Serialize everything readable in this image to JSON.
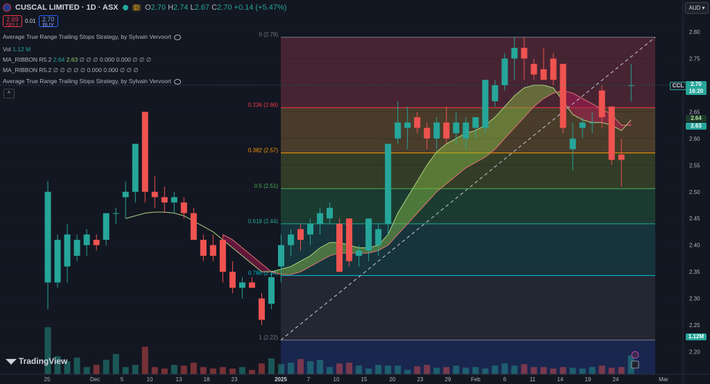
{
  "header": {
    "title": "CUSCAL LIMITED · 1D · ASX",
    "badge": "D",
    "o_label": "O",
    "o": "2.70",
    "h_label": "H",
    "h": "2.74",
    "l_label": "L",
    "l": "2.67",
    "c_label": "C",
    "c": "2.70",
    "change": "+0.14 (+5.47%)"
  },
  "trade": {
    "sell_price": "2.69",
    "sell_label": "SELL",
    "spread": "0.01",
    "buy_price": "2.70",
    "buy_label": "BUY"
  },
  "indicators": {
    "atr1": "Average True Range Trailing Stops Strategy, by Sylvain Vervoort",
    "vol_label": "Vol",
    "vol_value": "1.12 M",
    "ribbon1_label": "MA_RIBBON R5.2",
    "ribbon1_v1": "2.64",
    "ribbon1_v2": "2.63",
    "ribbon1_rest": "∅ ∅ ∅ 0.000 0.000 ∅ ∅ ∅",
    "ribbon2_label": "MA_RIBBON R5.2",
    "ribbon2_rest": "∅ ∅ ∅ ∅ ∅ 0.000 0.000 ∅ ∅ ∅",
    "atr2": "Average True Range Trailing Stops Strategy, by Sylvain Vervoort"
  },
  "currency_button": "AUD",
  "logo_text": "TradingView",
  "price_labels": {
    "ccl": "CCL",
    "last": "2.70",
    "countdown": "16:20",
    "ma1": "2.64",
    "ma2": "2.63",
    "volume": "1.12M"
  },
  "colors": {
    "up": "#26a69a",
    "down": "#ef5350",
    "background": "#131722"
  },
  "chart_data": {
    "type": "candlestick",
    "y_axis": {
      "range": [
        2.16,
        2.83
      ],
      "ticks": [
        "2.80",
        "2.75",
        "2.70",
        "2.65",
        "2.60",
        "2.55",
        "2.50",
        "2.45",
        "2.40",
        "2.35",
        "2.30",
        "2.25",
        "2.20"
      ]
    },
    "x_axis": {
      "ticks": [
        "25",
        "Dec",
        "5",
        "10",
        "13",
        "18",
        "23",
        "2025",
        "7",
        "10",
        "15",
        "20",
        "23",
        "29",
        "Feb",
        "6",
        "11",
        "14",
        "19",
        "24",
        "Mar"
      ]
    },
    "fib_levels": [
      {
        "label": "0 (2.79)",
        "value": 2.79
      },
      {
        "label": "0.236 (2.66)",
        "value": 2.658
      },
      {
        "label": "0.382 (2.57)",
        "value": 2.573
      },
      {
        "label": "0.5 (2.51)",
        "value": 2.506
      },
      {
        "label": "0.618 (2.44)",
        "value": 2.44
      },
      {
        "label": "0.786 (2.34)",
        "value": 2.343
      },
      {
        "label": "1 (2.22)",
        "value": 2.222
      }
    ],
    "candles": [
      {
        "o": 2.33,
        "h": 2.52,
        "l": 2.28,
        "c": 2.5
      },
      {
        "o": 2.33,
        "h": 2.42,
        "l": 2.32,
        "c": 2.41
      },
      {
        "o": 2.36,
        "h": 2.44,
        "l": 2.33,
        "c": 2.42
      },
      {
        "o": 2.38,
        "h": 2.42,
        "l": 2.37,
        "c": 2.41
      },
      {
        "o": 2.4,
        "h": 2.43,
        "l": 2.38,
        "c": 2.42
      },
      {
        "o": 2.41,
        "h": 2.42,
        "l": 2.39,
        "c": 2.4
      },
      {
        "o": 2.41,
        "h": 2.46,
        "l": 2.4,
        "c": 2.46
      },
      {
        "o": 2.46,
        "h": 2.47,
        "l": 2.44,
        "c": 2.46
      },
      {
        "o": 2.49,
        "h": 2.52,
        "l": 2.45,
        "c": 2.5
      },
      {
        "o": 2.5,
        "h": 2.59,
        "l": 2.48,
        "c": 2.59
      },
      {
        "o": 2.65,
        "h": 2.65,
        "l": 2.48,
        "c": 2.5
      },
      {
        "o": 2.5,
        "h": 2.53,
        "l": 2.47,
        "c": 2.49
      },
      {
        "o": 2.49,
        "h": 2.51,
        "l": 2.46,
        "c": 2.48
      },
      {
        "o": 2.48,
        "h": 2.5,
        "l": 2.46,
        "c": 2.49
      },
      {
        "o": 2.48,
        "h": 2.49,
        "l": 2.45,
        "c": 2.46
      },
      {
        "o": 2.46,
        "h": 2.47,
        "l": 2.41,
        "c": 2.41
      },
      {
        "o": 2.41,
        "h": 2.42,
        "l": 2.37,
        "c": 2.38
      },
      {
        "o": 2.4,
        "h": 2.42,
        "l": 2.37,
        "c": 2.38
      },
      {
        "o": 2.41,
        "h": 2.42,
        "l": 2.33,
        "c": 2.35
      },
      {
        "o": 2.35,
        "h": 2.37,
        "l": 2.31,
        "c": 2.32
      },
      {
        "o": 2.32,
        "h": 2.34,
        "l": 2.3,
        "c": 2.33
      },
      {
        "o": 2.33,
        "h": 2.34,
        "l": 2.32,
        "c": 2.32
      },
      {
        "o": 2.3,
        "h": 2.31,
        "l": 2.25,
        "c": 2.26
      },
      {
        "o": 2.29,
        "h": 2.35,
        "l": 2.28,
        "c": 2.34
      },
      {
        "o": 2.36,
        "h": 2.42,
        "l": 2.33,
        "c": 2.4
      },
      {
        "o": 2.4,
        "h": 2.43,
        "l": 2.38,
        "c": 2.42
      },
      {
        "o": 2.43,
        "h": 2.44,
        "l": 2.39,
        "c": 2.41
      },
      {
        "o": 2.42,
        "h": 2.45,
        "l": 2.4,
        "c": 2.44
      },
      {
        "o": 2.44,
        "h": 2.47,
        "l": 2.42,
        "c": 2.46
      },
      {
        "o": 2.45,
        "h": 2.48,
        "l": 2.44,
        "c": 2.47
      },
      {
        "o": 2.44,
        "h": 2.45,
        "l": 2.35,
        "c": 2.35
      },
      {
        "o": 2.45,
        "h": 2.45,
        "l": 2.36,
        "c": 2.37
      },
      {
        "o": 2.38,
        "h": 2.4,
        "l": 2.36,
        "c": 2.39
      },
      {
        "o": 2.39,
        "h": 2.45,
        "l": 2.37,
        "c": 2.45
      },
      {
        "o": 2.4,
        "h": 2.44,
        "l": 2.38,
        "c": 2.43
      },
      {
        "o": 2.44,
        "h": 2.59,
        "l": 2.42,
        "c": 2.59
      },
      {
        "o": 2.6,
        "h": 2.67,
        "l": 2.59,
        "c": 2.63
      },
      {
        "o": 2.62,
        "h": 2.66,
        "l": 2.58,
        "c": 2.63
      },
      {
        "o": 2.64,
        "h": 2.65,
        "l": 2.61,
        "c": 2.62
      },
      {
        "o": 2.62,
        "h": 2.63,
        "l": 2.58,
        "c": 2.6
      },
      {
        "o": 2.6,
        "h": 2.64,
        "l": 2.58,
        "c": 2.63
      },
      {
        "o": 2.63,
        "h": 2.66,
        "l": 2.59,
        "c": 2.6
      },
      {
        "o": 2.61,
        "h": 2.65,
        "l": 2.59,
        "c": 2.63
      },
      {
        "o": 2.6,
        "h": 2.64,
        "l": 2.58,
        "c": 2.63
      },
      {
        "o": 2.62,
        "h": 2.64,
        "l": 2.6,
        "c": 2.64
      },
      {
        "o": 2.62,
        "h": 2.71,
        "l": 2.61,
        "c": 2.71
      },
      {
        "o": 2.67,
        "h": 2.71,
        "l": 2.66,
        "c": 2.7
      },
      {
        "o": 2.7,
        "h": 2.76,
        "l": 2.69,
        "c": 2.75
      },
      {
        "o": 2.75,
        "h": 2.79,
        "l": 2.71,
        "c": 2.77
      },
      {
        "o": 2.77,
        "h": 2.79,
        "l": 2.71,
        "c": 2.75
      },
      {
        "o": 2.74,
        "h": 2.75,
        "l": 2.71,
        "c": 2.72
      },
      {
        "o": 2.73,
        "h": 2.77,
        "l": 2.71,
        "c": 2.71
      },
      {
        "o": 2.75,
        "h": 2.76,
        "l": 2.7,
        "c": 2.71
      },
      {
        "o": 2.74,
        "h": 2.74,
        "l": 2.61,
        "c": 2.62
      },
      {
        "o": 2.58,
        "h": 2.63,
        "l": 2.54,
        "c": 2.6
      },
      {
        "o": 2.62,
        "h": 2.64,
        "l": 2.6,
        "c": 2.63
      },
      {
        "o": 2.63,
        "h": 2.65,
        "l": 2.61,
        "c": 2.63
      },
      {
        "o": 2.69,
        "h": 2.7,
        "l": 2.62,
        "c": 2.64
      },
      {
        "o": 2.66,
        "h": 2.66,
        "l": 2.55,
        "c": 2.56
      },
      {
        "o": 2.57,
        "h": 2.6,
        "l": 2.51,
        "c": 2.56
      },
      {
        "o": 2.7,
        "h": 2.74,
        "l": 2.67,
        "c": 2.7
      }
    ],
    "volume_scale": [
      0,
      1.1
    ],
    "volumes": [
      0.65,
      0.25,
      0.18,
      0.23,
      0.1,
      0.13,
      0.2,
      0.28,
      0.1,
      0.13,
      0.38,
      0.1,
      0.08,
      0.13,
      0.12,
      0.16,
      0.1,
      0.08,
      0.1,
      0.08,
      0.1,
      0.06,
      0.15,
      0.22,
      0.14,
      0.16,
      0.21,
      0.18,
      0.2,
      0.1,
      0.15,
      0.16,
      0.12,
      0.08,
      0.13,
      0.12,
      0.12,
      0.06,
      0.11,
      0.13,
      0.09,
      0.1,
      0.12,
      0.09,
      0.1,
      0.08,
      0.12,
      0.15,
      0.12,
      0.14,
      0.1,
      0.1,
      0.08,
      0.1,
      0.09,
      0.08,
      0.1,
      0.12,
      0.09,
      0.1,
      0.26
    ],
    "ma_ribbon_fast": [
      null,
      null,
      null,
      null,
      null,
      null,
      null,
      null,
      2.45,
      2.455,
      2.46,
      2.462,
      2.462,
      2.46,
      2.455,
      2.445,
      2.435,
      2.425,
      2.41,
      2.395,
      2.38,
      2.365,
      2.35,
      2.35,
      2.355,
      2.36,
      2.37,
      2.38,
      2.395,
      2.405,
      2.405,
      2.4,
      2.395,
      2.395,
      2.4,
      2.42,
      2.46,
      2.49,
      2.52,
      2.55,
      2.575,
      2.59,
      2.6,
      2.61,
      2.615,
      2.625,
      2.64,
      2.66,
      2.68,
      2.695,
      2.7,
      2.7,
      2.695,
      2.67,
      2.645,
      2.635,
      2.63,
      2.63,
      2.625,
      2.615,
      2.635
    ],
    "ma_ribbon_slow": [
      null,
      null,
      null,
      null,
      null,
      null,
      null,
      null,
      null,
      null,
      null,
      null,
      null,
      null,
      null,
      null,
      null,
      null,
      2.42,
      2.41,
      2.395,
      2.38,
      2.365,
      2.35,
      2.345,
      2.345,
      2.35,
      2.36,
      2.37,
      2.38,
      2.385,
      2.385,
      2.385,
      2.385,
      2.39,
      2.4,
      2.42,
      2.44,
      2.46,
      2.48,
      2.5,
      2.515,
      2.53,
      2.545,
      2.555,
      2.565,
      2.58,
      2.6,
      2.62,
      2.64,
      2.66,
      2.675,
      2.685,
      2.69,
      2.685,
      2.675,
      2.665,
      2.655,
      2.645,
      2.625,
      2.625
    ],
    "diagonal_line": {
      "from_value": 2.222,
      "to_value": 2.79
    }
  }
}
